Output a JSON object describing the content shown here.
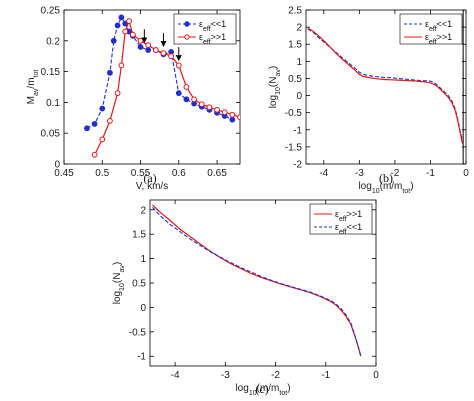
{
  "colors": {
    "blue": "#1f2fcf",
    "red": "#e21818",
    "axis": "#000000"
  },
  "chart_data": [
    {
      "panel": "(a)",
      "type": "line",
      "xlabel": "V, km/s",
      "ylabel": "M_av/m_tot",
      "xlim": [
        0.45,
        0.68
      ],
      "ylim": [
        0,
        0.25
      ],
      "xticks": [
        0.45,
        0.5,
        0.55,
        0.6,
        0.65
      ],
      "xticklabels": [
        "0.45",
        "0.5",
        "0.55",
        "0.6",
        "0.65"
      ],
      "yticks": [
        0,
        0.05,
        0.1,
        0.15,
        0.2,
        0.25
      ],
      "yticklabels": [
        "0",
        "0.05",
        "0.1",
        "0.15",
        "0.2",
        "0.25"
      ],
      "grid": false,
      "legend": "top-right",
      "series": [
        {
          "name": "ε_eff<<1",
          "color": "blue",
          "dash": true,
          "marker": "filled-circle",
          "x": [
            0.48,
            0.49,
            0.5,
            0.51,
            0.515,
            0.52,
            0.525,
            0.53,
            0.535,
            0.54,
            0.55,
            0.56,
            0.57,
            0.58,
            0.59,
            0.6,
            0.61,
            0.62,
            0.63,
            0.64,
            0.65,
            0.66,
            0.67
          ],
          "y": [
            0.058,
            0.065,
            0.09,
            0.148,
            0.2,
            0.225,
            0.238,
            0.228,
            0.215,
            0.208,
            0.19,
            0.185,
            0.185,
            0.178,
            0.182,
            0.115,
            0.105,
            0.098,
            0.093,
            0.088,
            0.083,
            0.078,
            0.072
          ]
        },
        {
          "name": "ε_eff>>1",
          "color": "red",
          "dash": false,
          "marker": "open-circle",
          "x": [
            0.49,
            0.5,
            0.51,
            0.52,
            0.525,
            0.53,
            0.535,
            0.54,
            0.55,
            0.56,
            0.57,
            0.58,
            0.59,
            0.6,
            0.61,
            0.62,
            0.63,
            0.64,
            0.65,
            0.66,
            0.67,
            0.68
          ],
          "y": [
            0.015,
            0.04,
            0.07,
            0.115,
            0.16,
            0.215,
            0.232,
            0.21,
            0.2,
            0.193,
            0.185,
            0.18,
            0.175,
            0.16,
            0.125,
            0.105,
            0.097,
            0.092,
            0.088,
            0.084,
            0.08,
            0.076
          ]
        }
      ],
      "annotations": [
        {
          "type": "arrow",
          "x": 0.555,
          "y": 0.196
        },
        {
          "type": "arrow",
          "x": 0.58,
          "y": 0.19
        },
        {
          "type": "arrow",
          "x": 0.6,
          "y": 0.167
        }
      ]
    },
    {
      "panel": "(b)",
      "type": "line",
      "xlabel": "log_10(m/m_tot)",
      "ylabel": "log_10(N_av)",
      "xlim": [
        -4.5,
        0
      ],
      "ylim": [
        -2,
        2.5
      ],
      "xticks": [
        -4,
        -3,
        -2,
        -1,
        0
      ],
      "xticklabels": [
        "-4",
        "-3",
        "-2",
        "-1",
        "0"
      ],
      "yticks": [
        -2,
        -1.5,
        -1,
        -0.5,
        0,
        0.5,
        1,
        1.5,
        2,
        2.5
      ],
      "yticklabels": [
        "-2",
        "-1.5",
        "-1",
        "-0.5",
        "0",
        "0.5",
        "1",
        "1.5",
        "2",
        "2.5"
      ],
      "grid": false,
      "legend": "top-right",
      "series": [
        {
          "name": "ε_eff<<1",
          "color": "blue",
          "dash": true,
          "x": [
            -4.45,
            -4.3,
            -4.1,
            -3.9,
            -3.7,
            -3.5,
            -3.3,
            -3.1,
            -3.0,
            -2.9,
            -2.7,
            -2.5,
            -2.3,
            -2.1,
            -1.9,
            -1.7,
            -1.5,
            -1.3,
            -1.1,
            -1.0,
            -0.9,
            -0.8,
            -0.7,
            -0.6,
            -0.5,
            -0.4,
            -0.3,
            -0.25,
            -0.2,
            -0.15,
            -0.1
          ],
          "y": [
            1.95,
            1.85,
            1.65,
            1.48,
            1.3,
            1.12,
            0.95,
            0.78,
            0.68,
            0.62,
            0.58,
            0.55,
            0.53,
            0.52,
            0.5,
            0.48,
            0.46,
            0.44,
            0.43,
            0.42,
            0.38,
            0.3,
            0.2,
            0.1,
            0.0,
            -0.15,
            -0.4,
            -0.6,
            -0.85,
            -1.1,
            -1.3
          ]
        },
        {
          "name": "ε_eff>>1",
          "color": "red",
          "dash": false,
          "x": [
            -4.45,
            -4.3,
            -4.1,
            -3.9,
            -3.7,
            -3.5,
            -3.3,
            -3.1,
            -3.0,
            -2.9,
            -2.7,
            -2.5,
            -2.3,
            -2.1,
            -1.9,
            -1.7,
            -1.5,
            -1.3,
            -1.1,
            -1.0,
            -0.9,
            -0.8,
            -0.7,
            -0.6,
            -0.5,
            -0.4,
            -0.3,
            -0.25,
            -0.2,
            -0.15,
            -0.1
          ],
          "y": [
            1.97,
            1.88,
            1.7,
            1.5,
            1.28,
            1.08,
            0.9,
            0.72,
            0.62,
            0.56,
            0.52,
            0.49,
            0.47,
            0.46,
            0.45,
            0.44,
            0.43,
            0.41,
            0.39,
            0.37,
            0.33,
            0.26,
            0.16,
            0.06,
            -0.05,
            -0.2,
            -0.45,
            -0.65,
            -0.9,
            -1.15,
            -1.4
          ]
        }
      ],
      "annotations": [
        {
          "type": "vertical-line",
          "x": -0.08
        }
      ]
    },
    {
      "panel": "(c)",
      "type": "line",
      "xlabel": "log_10(m/m_tot)",
      "ylabel": "log_10(N_av)",
      "xlim": [
        -4.5,
        0
      ],
      "ylim": [
        -1.2,
        2.2
      ],
      "xticks": [
        -4,
        -3,
        -2,
        -1,
        0
      ],
      "xticklabels": [
        "-4",
        "-3",
        "-2",
        "-1",
        "0"
      ],
      "yticks": [
        -1,
        -0.5,
        0,
        0.5,
        1,
        1.5,
        2
      ],
      "yticklabels": [
        "-1",
        "-0.5",
        "0",
        "0.5",
        "1",
        "1.5",
        "2"
      ],
      "grid": false,
      "legend": "top-right",
      "series": [
        {
          "name": "ε_eff>>1",
          "color": "red",
          "dash": false,
          "x": [
            -4.45,
            -4.3,
            -4.1,
            -3.9,
            -3.7,
            -3.5,
            -3.3,
            -3.1,
            -2.9,
            -2.7,
            -2.5,
            -2.3,
            -2.1,
            -1.9,
            -1.7,
            -1.5,
            -1.3,
            -1.1,
            -0.9,
            -0.8,
            -0.7,
            -0.6,
            -0.5,
            -0.45,
            -0.4,
            -0.35,
            -0.3
          ],
          "y": [
            2.1,
            1.95,
            1.78,
            1.6,
            1.45,
            1.3,
            1.15,
            1.02,
            0.9,
            0.8,
            0.7,
            0.62,
            0.55,
            0.48,
            0.42,
            0.36,
            0.3,
            0.22,
            0.12,
            0.05,
            -0.05,
            -0.18,
            -0.35,
            -0.5,
            -0.65,
            -0.82,
            -1.0
          ]
        },
        {
          "name": "ε_eff<<1",
          "color": "blue",
          "dash": true,
          "x": [
            -4.45,
            -4.3,
            -4.1,
            -3.9,
            -3.7,
            -3.5,
            -3.3,
            -3.1,
            -2.9,
            -2.7,
            -2.5,
            -2.3,
            -2.1,
            -1.9,
            -1.7,
            -1.5,
            -1.3,
            -1.1,
            -0.9,
            -0.8,
            -0.7,
            -0.6,
            -0.5,
            -0.45,
            -0.4,
            -0.35,
            -0.3
          ],
          "y": [
            2.05,
            1.88,
            1.7,
            1.55,
            1.4,
            1.27,
            1.14,
            1.03,
            0.92,
            0.82,
            0.73,
            0.64,
            0.56,
            0.49,
            0.43,
            0.37,
            0.31,
            0.23,
            0.14,
            0.07,
            -0.02,
            -0.15,
            -0.32,
            -0.48,
            -0.64,
            -0.82,
            -1.02
          ]
        }
      ],
      "annotations": []
    }
  ]
}
